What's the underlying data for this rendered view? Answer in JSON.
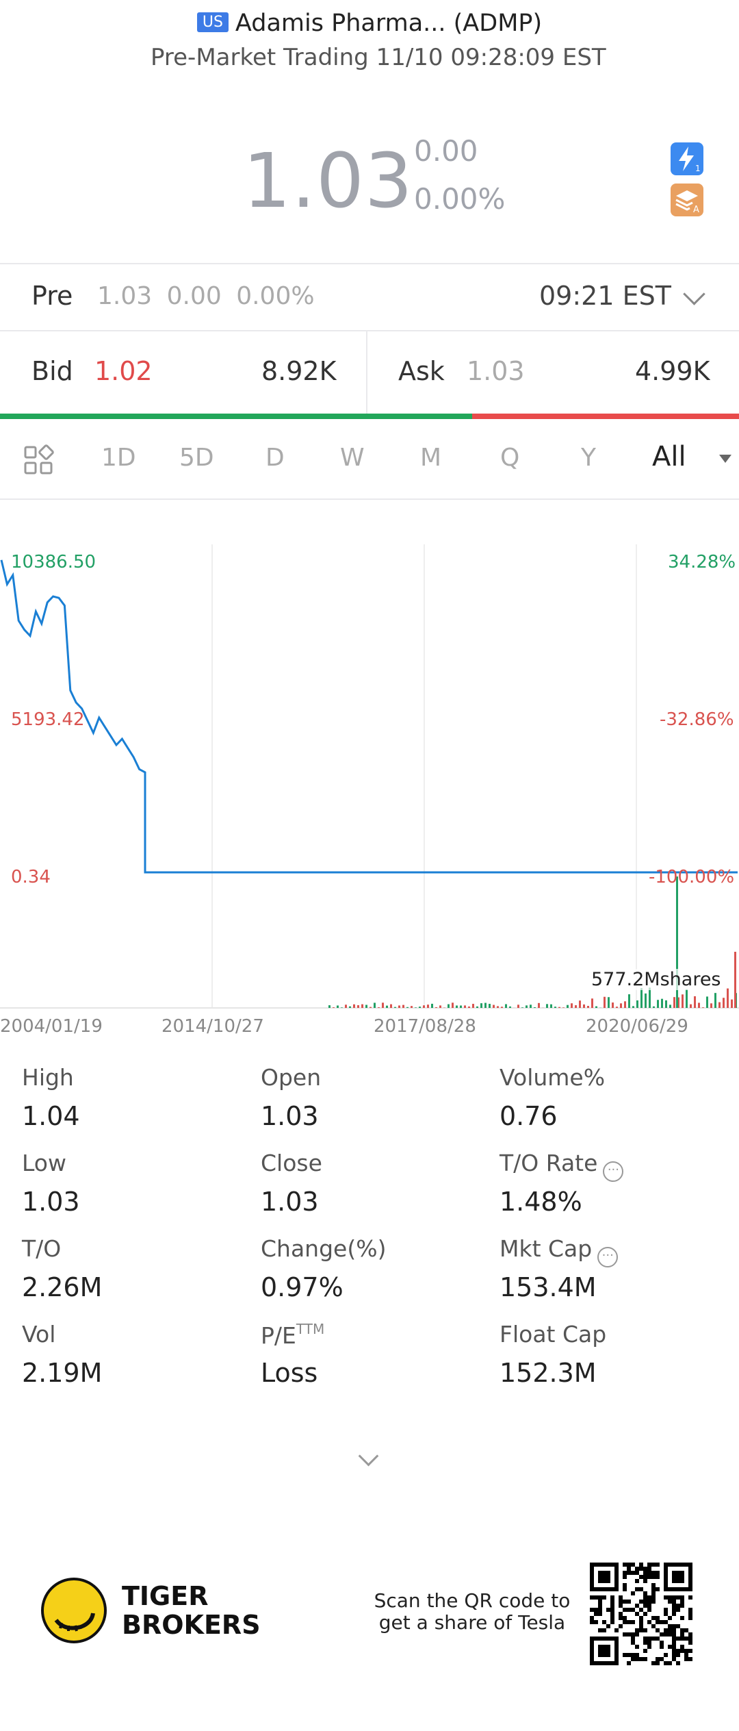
{
  "header": {
    "market_badge": "US",
    "title": "Adamis Pharma... (ADMP)",
    "subtitle": "Pre-Market Trading 11/10 09:28:09 EST"
  },
  "quote": {
    "price": "1.03",
    "change": "0.00",
    "change_pct": "0.00%"
  },
  "pre_row": {
    "label": "Pre",
    "value": "1.03   0.00   0.00%",
    "time": "09:21 EST"
  },
  "bid_ask": {
    "bid_label": "Bid",
    "bid_price": "1.02",
    "bid_size": "8.92K",
    "ask_label": "Ask",
    "ask_price": "1.03",
    "ask_size": "4.99K"
  },
  "tabs": [
    "1D",
    "5D",
    "D",
    "W",
    "M",
    "Q",
    "Y",
    "All"
  ],
  "active_tab": "All",
  "colors": {
    "up": "#22a065",
    "down": "#d9534f",
    "line": "#1a7fd4"
  },
  "chart_data": {
    "type": "line",
    "y_left_labels": [
      "10386.50",
      "5193.42",
      "0.34"
    ],
    "y_right_labels": [
      "34.28%",
      "-32.86%",
      "-100.00%"
    ],
    "x_labels": [
      "2004/01/19",
      "2014/10/27",
      "2017/08/28",
      "2020/06/29"
    ],
    "volume_label": "577.2Mshares",
    "ylim": [
      0.34,
      10386.5
    ],
    "series": [
      {
        "values": [
          10300,
          9500,
          9800,
          8300,
          8000,
          7800,
          8600,
          8200,
          8900,
          9100,
          9050,
          8800,
          6000,
          5600,
          5400,
          5000,
          4600,
          5100,
          4800,
          4500,
          4200,
          4400,
          4100,
          3800,
          3400,
          3300,
          1.0,
          1.0,
          1.0,
          1.0,
          1.0,
          1.03
        ]
      }
    ]
  },
  "stats": [
    {
      "label": "High",
      "value": "1.04"
    },
    {
      "label": "Open",
      "value": "1.03"
    },
    {
      "label": "Volume%",
      "value": "0.76"
    },
    {
      "label": "Low",
      "value": "1.03"
    },
    {
      "label": "Close",
      "value": "1.03"
    },
    {
      "label": "T/O Rate",
      "value": "1.48%"
    },
    {
      "label": "T/O",
      "value": "2.26M"
    },
    {
      "label": "Change(%)",
      "value": "0.97%"
    },
    {
      "label": "Mkt Cap",
      "value": "153.4M"
    },
    {
      "label": "Vol",
      "value": "2.19M"
    },
    {
      "label": "P/E",
      "value": "Loss"
    },
    {
      "label": "Float Cap",
      "value": "152.3M"
    }
  ],
  "pe_superscript": "TTM",
  "footer": {
    "brand_line1": "TIGER",
    "brand_line2": "BROKERS",
    "scan_line1": "Scan the QR code to",
    "scan_line2": "get a share of Tesla"
  },
  "icons": {
    "tabs_grid": "grid-icon",
    "badge1": "lightning-icon",
    "badge2": "layers-icon",
    "info": "info-icon",
    "expand": "chevron-down-icon"
  }
}
